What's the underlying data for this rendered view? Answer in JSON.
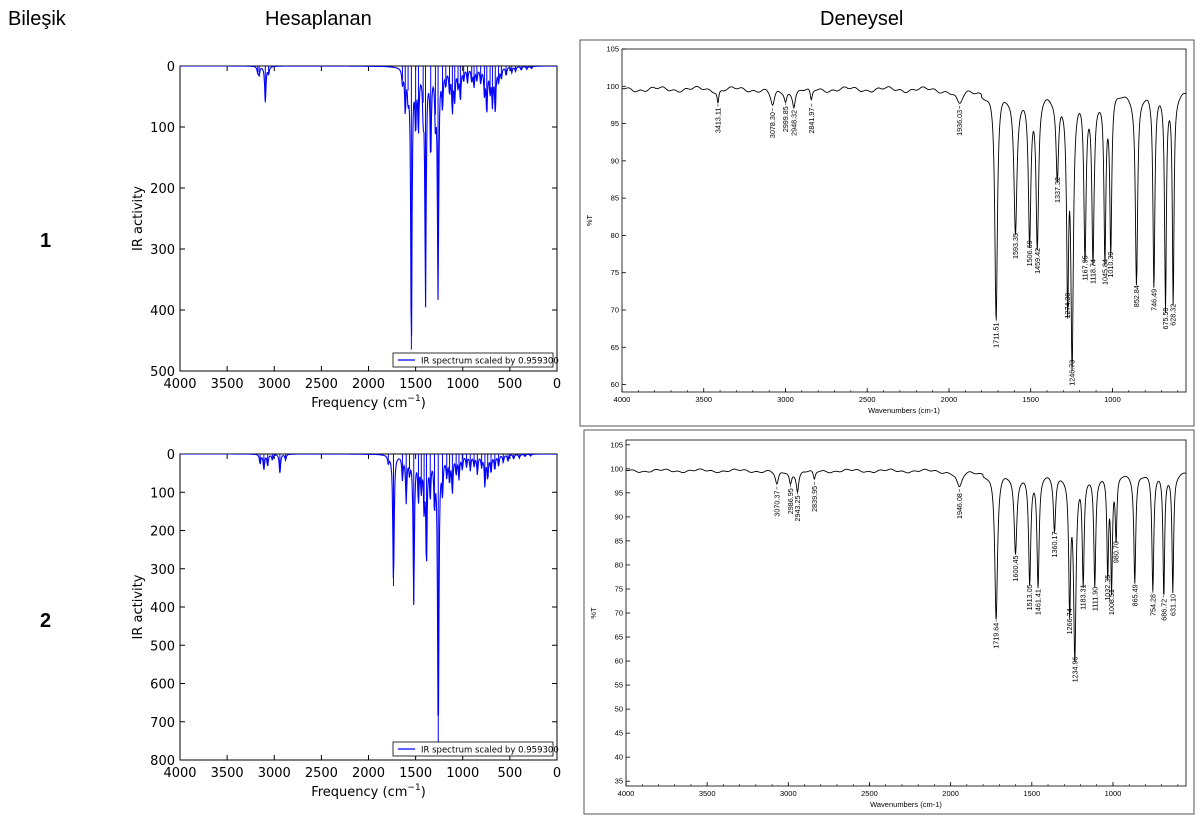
{
  "headers": {
    "compound": "Bileşik",
    "calculated": "Hesaplanan",
    "experimental": "Deneysel"
  },
  "rows": [
    {
      "label": "1"
    },
    {
      "label": "2"
    }
  ],
  "chart_data": [
    {
      "id": "calc1",
      "type": "line",
      "xlabel": "Frequency (cm$^{-1}$)",
      "xlabel_text": "Frequency (cm",
      "xlabel_sup": "−1",
      "xlabel_tail": ")",
      "ylabel": "IR activity",
      "xlim": [
        4000,
        0
      ],
      "ylim": [
        0,
        500
      ],
      "y_inverted": true,
      "x_ticks": [
        4000,
        3500,
        3000,
        2500,
        2000,
        1500,
        1000,
        500,
        0
      ],
      "y_ticks": [
        0,
        100,
        200,
        300,
        400,
        500
      ],
      "legend": "IR spectrum scaled by 0.959300",
      "legend_position": "lower-right",
      "color": "#0000ff",
      "peaks": [
        {
          "x": 3175,
          "y": 10
        },
        {
          "x": 3160,
          "y": 14
        },
        {
          "x": 3095,
          "y": 60
        },
        {
          "x": 3060,
          "y": 12
        },
        {
          "x": 1640,
          "y": 24
        },
        {
          "x": 1610,
          "y": 68
        },
        {
          "x": 1580,
          "y": 40
        },
        {
          "x": 1545,
          "y": 465
        },
        {
          "x": 1500,
          "y": 90
        },
        {
          "x": 1470,
          "y": 95
        },
        {
          "x": 1420,
          "y": 60
        },
        {
          "x": 1395,
          "y": 385
        },
        {
          "x": 1340,
          "y": 140
        },
        {
          "x": 1290,
          "y": 80
        },
        {
          "x": 1262,
          "y": 375
        },
        {
          "x": 1215,
          "y": 60
        },
        {
          "x": 1180,
          "y": 25
        },
        {
          "x": 1140,
          "y": 38
        },
        {
          "x": 1110,
          "y": 70
        },
        {
          "x": 1085,
          "y": 50
        },
        {
          "x": 1050,
          "y": 30
        },
        {
          "x": 1025,
          "y": 52
        },
        {
          "x": 990,
          "y": 20
        },
        {
          "x": 950,
          "y": 25
        },
        {
          "x": 905,
          "y": 22
        },
        {
          "x": 880,
          "y": 30
        },
        {
          "x": 850,
          "y": 20
        },
        {
          "x": 810,
          "y": 25
        },
        {
          "x": 770,
          "y": 44
        },
        {
          "x": 745,
          "y": 72
        },
        {
          "x": 710,
          "y": 38
        },
        {
          "x": 685,
          "y": 60
        },
        {
          "x": 655,
          "y": 72
        },
        {
          "x": 620,
          "y": 24
        },
        {
          "x": 590,
          "y": 18
        },
        {
          "x": 540,
          "y": 14
        },
        {
          "x": 480,
          "y": 10
        },
        {
          "x": 440,
          "y": 8
        },
        {
          "x": 380,
          "y": 6
        },
        {
          "x": 320,
          "y": 5
        },
        {
          "x": 270,
          "y": 4
        }
      ]
    },
    {
      "id": "exp1",
      "type": "line",
      "xlabel": "Wavenumbers (cm-1)",
      "ylabel": "%T",
      "xlim": [
        4000,
        550
      ],
      "ylim": [
        59,
        105
      ],
      "x_ticks": [
        4000,
        3500,
        3000,
        2500,
        2000,
        1500,
        1000
      ],
      "y_ticks": [
        60,
        65,
        70,
        75,
        80,
        85,
        90,
        95,
        100,
        105
      ],
      "color": "#000000",
      "dips": [
        {
          "x": 3413.11,
          "y": 97.8,
          "w": 6
        },
        {
          "x": 3078.3,
          "y": 97.2,
          "w": 15
        },
        {
          "x": 2999.85,
          "y": 98.0,
          "w": 10
        },
        {
          "x": 2948.32,
          "y": 97.5,
          "w": 10
        },
        {
          "x": 2841.97,
          "y": 97.8,
          "w": 8
        },
        {
          "x": 1936.03,
          "y": 97.5,
          "w": 25
        },
        {
          "x": 1711.51,
          "y": 69.0,
          "w": 9
        },
        {
          "x": 1593.35,
          "y": 81.0,
          "w": 11
        },
        {
          "x": 1506.69,
          "y": 80.0,
          "w": 9
        },
        {
          "x": 1459.42,
          "y": 79.0,
          "w": 9
        },
        {
          "x": 1337.32,
          "y": 88.5,
          "w": 9
        },
        {
          "x": 1274.3,
          "y": 73.0,
          "w": 7
        },
        {
          "x": 1246.73,
          "y": 64.0,
          "w": 9
        },
        {
          "x": 1167.95,
          "y": 78.0,
          "w": 8
        },
        {
          "x": 1118.74,
          "y": 77.5,
          "w": 8
        },
        {
          "x": 1045.84,
          "y": 77.5,
          "w": 7
        },
        {
          "x": 1010.39,
          "y": 78.5,
          "w": 7
        },
        {
          "x": 852.84,
          "y": 74.0,
          "w": 8
        },
        {
          "x": 746.49,
          "y": 73.5,
          "w": 7
        },
        {
          "x": 675.59,
          "y": 71.0,
          "w": 6
        },
        {
          "x": 628.32,
          "y": 71.5,
          "w": 6
        }
      ],
      "labels": [
        "3413.11",
        "3078.30",
        "2999.85",
        "2948.32",
        "2841.97",
        "1936.03",
        "1711.51",
        "1593.35",
        "1506.69",
        "1459.42",
        "1337.32",
        "1274.30",
        "1246.73",
        "1167.95",
        "1118.74",
        "1045.84",
        "1010.39",
        "852.84",
        "746.49",
        "675.59",
        "628.32"
      ]
    },
    {
      "id": "calc2",
      "type": "line",
      "xlabel": "Frequency (cm$^{-1}$)",
      "xlabel_text": "Frequency (cm",
      "xlabel_sup": "−1",
      "xlabel_tail": ")",
      "ylabel": "IR activity",
      "xlim": [
        4000,
        0
      ],
      "ylim": [
        0,
        800
      ],
      "y_inverted": true,
      "x_ticks": [
        4000,
        3500,
        3000,
        2500,
        2000,
        1500,
        1000,
        500,
        0
      ],
      "y_ticks": [
        0,
        100,
        200,
        300,
        400,
        500,
        600,
        700,
        800
      ],
      "legend": "IR spectrum scaled by 0.959300",
      "legend_position": "lower-right",
      "color": "#0000ff",
      "peaks": [
        {
          "x": 3150,
          "y": 25
        },
        {
          "x": 3110,
          "y": 40
        },
        {
          "x": 3070,
          "y": 30
        },
        {
          "x": 3020,
          "y": 15
        },
        {
          "x": 2940,
          "y": 50
        },
        {
          "x": 2880,
          "y": 15
        },
        {
          "x": 1790,
          "y": 20
        },
        {
          "x": 1735,
          "y": 345
        },
        {
          "x": 1640,
          "y": 60
        },
        {
          "x": 1600,
          "y": 120
        },
        {
          "x": 1565,
          "y": 40
        },
        {
          "x": 1520,
          "y": 385
        },
        {
          "x": 1470,
          "y": 110
        },
        {
          "x": 1440,
          "y": 80
        },
        {
          "x": 1410,
          "y": 130
        },
        {
          "x": 1385,
          "y": 275
        },
        {
          "x": 1345,
          "y": 100
        },
        {
          "x": 1300,
          "y": 120
        },
        {
          "x": 1260,
          "y": 755
        },
        {
          "x": 1215,
          "y": 90
        },
        {
          "x": 1170,
          "y": 50
        },
        {
          "x": 1140,
          "y": 65
        },
        {
          "x": 1110,
          "y": 95
        },
        {
          "x": 1070,
          "y": 45
        },
        {
          "x": 1040,
          "y": 60
        },
        {
          "x": 1005,
          "y": 35
        },
        {
          "x": 960,
          "y": 30
        },
        {
          "x": 920,
          "y": 40
        },
        {
          "x": 880,
          "y": 28
        },
        {
          "x": 845,
          "y": 50
        },
        {
          "x": 800,
          "y": 30
        },
        {
          "x": 765,
          "y": 80
        },
        {
          "x": 735,
          "y": 60
        },
        {
          "x": 700,
          "y": 45
        },
        {
          "x": 660,
          "y": 38
        },
        {
          "x": 620,
          "y": 30
        },
        {
          "x": 570,
          "y": 20
        },
        {
          "x": 520,
          "y": 18
        },
        {
          "x": 460,
          "y": 12
        },
        {
          "x": 400,
          "y": 10
        },
        {
          "x": 340,
          "y": 6
        },
        {
          "x": 280,
          "y": 5
        }
      ]
    },
    {
      "id": "exp2",
      "type": "line",
      "xlabel": "Wavenumbers (cm-1)",
      "ylabel": "%T",
      "xlim": [
        4000,
        550
      ],
      "ylim": [
        34,
        106
      ],
      "x_ticks": [
        4000,
        3500,
        3000,
        2500,
        2000,
        1500,
        1000
      ],
      "x_tick_labels": [
        "4000",
        "3500",
        "3000",
        "2500",
        "2000",
        "1500",
        "1000"
      ],
      "y_ticks": [
        35,
        40,
        45,
        50,
        55,
        60,
        65,
        70,
        75,
        80,
        85,
        90,
        95,
        100,
        105
      ],
      "color": "#000000",
      "dips": [
        {
          "x": 3070.37,
          "y": 96.5,
          "w": 12
        },
        {
          "x": 2986.95,
          "y": 97.0,
          "w": 9
        },
        {
          "x": 2943.25,
          "y": 95.5,
          "w": 9
        },
        {
          "x": 2839.95,
          "y": 97.5,
          "w": 8
        },
        {
          "x": 1946.08,
          "y": 96.0,
          "w": 20
        },
        {
          "x": 1719.64,
          "y": 69.0,
          "w": 10
        },
        {
          "x": 1600.45,
          "y": 83.0,
          "w": 10
        },
        {
          "x": 1513.05,
          "y": 77.0,
          "w": 8
        },
        {
          "x": 1461.41,
          "y": 76.0,
          "w": 8
        },
        {
          "x": 1360.17,
          "y": 88.0,
          "w": 8
        },
        {
          "x": 1266.74,
          "y": 72.0,
          "w": 7
        },
        {
          "x": 1234.96,
          "y": 62.0,
          "w": 9
        },
        {
          "x": 1183.31,
          "y": 77.0,
          "w": 7
        },
        {
          "x": 1111.9,
          "y": 76.5,
          "w": 7
        },
        {
          "x": 1032.35,
          "y": 79.0,
          "w": 6
        },
        {
          "x": 1008.51,
          "y": 76.0,
          "w": 6
        },
        {
          "x": 980.7,
          "y": 86.0,
          "w": 6
        },
        {
          "x": 865.49,
          "y": 77.0,
          "w": 7
        },
        {
          "x": 754.28,
          "y": 75.0,
          "w": 7
        },
        {
          "x": 686.72,
          "y": 74.0,
          "w": 6
        },
        {
          "x": 631.1,
          "y": 75.0,
          "w": 6
        }
      ],
      "labels": [
        "3070.37",
        "2986.95",
        "2943.25",
        "2839.95",
        "1946.08",
        "1719.64",
        "1600.45",
        "1513.05",
        "1461.41",
        "1360.17",
        "1266.74",
        "1234.96",
        "1183.31",
        "1111.90",
        "1032.35",
        "1008.51",
        "980.70",
        "865.49",
        "754.28",
        "686.72",
        "631.10"
      ]
    }
  ]
}
